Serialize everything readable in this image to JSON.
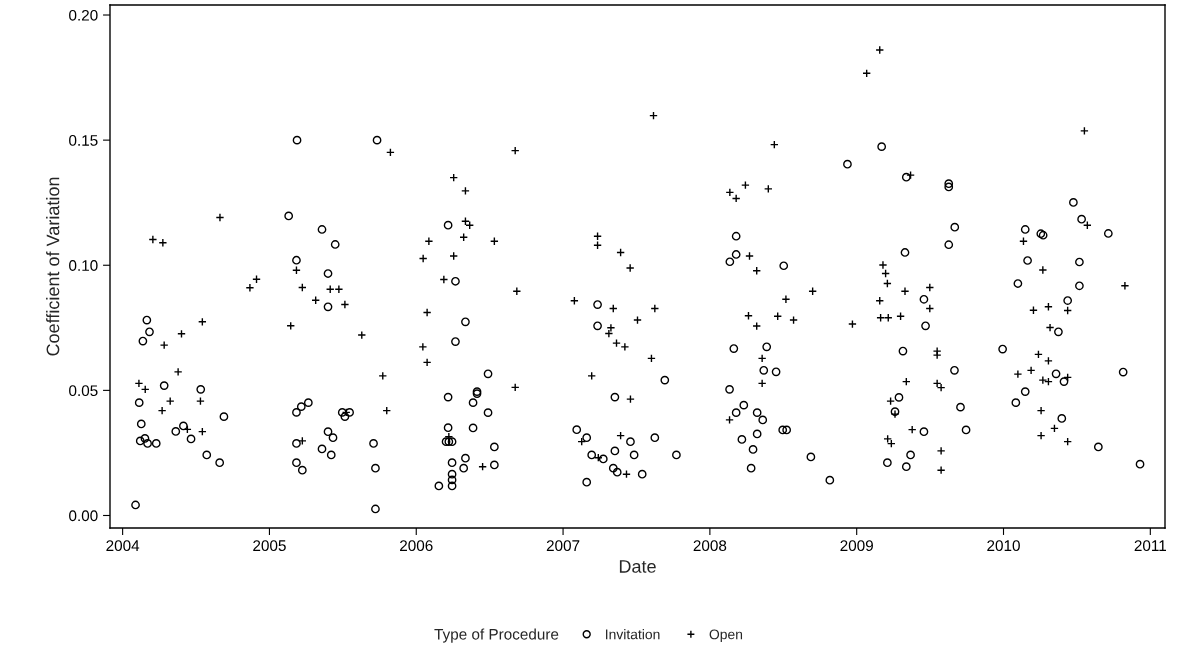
{
  "chart_data": {
    "type": "scatter",
    "xlabel": "Date",
    "ylabel": "Coefficient of Variation",
    "legend_title": "Type of Procedure",
    "legend": "bottom",
    "grid": false,
    "xlim": [
      2003.914,
      2011.1
    ],
    "xticks": [
      2004,
      2005,
      2006,
      2007,
      2008,
      2009,
      2010,
      2011
    ],
    "ylim": [
      -0.005,
      0.204
    ],
    "yticks": [
      {
        "value": 0,
        "label": "0.00"
      },
      {
        "value": 0.05,
        "label": "0.05"
      },
      {
        "value": 0.1,
        "label": "0.10"
      },
      {
        "value": 0.15,
        "label": "0.15"
      },
      {
        "value": 0.2,
        "label": "0.20"
      }
    ],
    "series": [
      {
        "name": "Invitation",
        "color": "#000000",
        "marker": "circle",
        "x": [
          2005.188,
          2005.733,
          2005.131,
          2005.358,
          2005.448,
          2005.184,
          2005.399,
          2005.399,
          2004.165,
          2004.183,
          2004.138,
          2004.283,
          2004.532,
          2004.113,
          2004.69,
          2004.127,
          2004.362,
          2004.414,
          2004.466,
          2004.12,
          2004.152,
          2004.17,
          2004.229,
          2004.573,
          2004.661,
          2004.088,
          2005.184,
          2005.217,
          2005.265,
          2005.184,
          2005.184,
          2005.224,
          2005.358,
          2005.399,
          2005.433,
          2005.421,
          2005.496,
          2005.546,
          2005.514,
          2005.709,
          2005.722,
          2005.722,
          2006.217,
          2006.267,
          2006.335,
          2006.267,
          2006.489,
          2006.217,
          2006.414,
          2006.414,
          2006.387,
          2006.489,
          2006.217,
          2006.387,
          2006.203,
          2006.222,
          2006.244,
          2006.532,
          2006.335,
          2006.323,
          2006.244,
          2006.532,
          2006.244,
          2006.244,
          2006.244,
          2006.154,
          2007.235,
          2007.235,
          2007.693,
          2007.353,
          2007.093,
          2007.161,
          2007.459,
          2007.625,
          2007.195,
          2007.274,
          2007.353,
          2007.484,
          2007.772,
          2007.342,
          2007.369,
          2007.539,
          2007.161,
          2008.179,
          2008.179,
          2008.136,
          2008.163,
          2008.387,
          2008.367,
          2008.134,
          2008.231,
          2008.179,
          2008.322,
          2008.36,
          2008.322,
          2008.218,
          2008.294,
          2008.281,
          2008.503,
          2008.451,
          2008.496,
          2008.523,
          2008.688,
          2008.817,
          2009.17,
          2008.937,
          2009.338,
          2009.627,
          2009.627,
          2009.668,
          2009.627,
          2009.329,
          2009.458,
          2009.469,
          2009.315,
          2009.666,
          2009.288,
          2009.261,
          2009.707,
          2009.458,
          2009.745,
          2009.367,
          2009.209,
          2009.338,
          2010.476,
          2010.532,
          2010.714,
          2010.148,
          2010.254,
          2010.27,
          2010.164,
          2010.517,
          2010.098,
          2010.517,
          2010.437,
          2010.374,
          2009.994,
          2010.358,
          2010.412,
          2010.815,
          2010.148,
          2010.084,
          2010.397,
          2010.646,
          2010.93
        ],
        "values": [
          0.15,
          0.15,
          0.1197,
          0.1143,
          0.1083,
          0.102,
          0.0967,
          0.0834,
          0.0781,
          0.0734,
          0.0697,
          0.0519,
          0.0504,
          0.0451,
          0.0395,
          0.0366,
          0.0336,
          0.0358,
          0.0306,
          0.0298,
          0.0308,
          0.0288,
          0.0288,
          0.0242,
          0.0211,
          0.0042,
          0.0412,
          0.0435,
          0.0451,
          0.0288,
          0.0211,
          0.0181,
          0.0266,
          0.0335,
          0.0311,
          0.0242,
          0.0412,
          0.0412,
          0.0395,
          0.0288,
          0.0189,
          0.0026,
          0.116,
          0.0936,
          0.0774,
          0.0695,
          0.0566,
          0.0473,
          0.0495,
          0.0487,
          0.0451,
          0.0411,
          0.0351,
          0.035,
          0.0295,
          0.0295,
          0.0295,
          0.0274,
          0.0229,
          0.0189,
          0.0211,
          0.0202,
          0.0165,
          0.0142,
          0.0118,
          0.0118,
          0.0843,
          0.0758,
          0.0541,
          0.0473,
          0.0343,
          0.0311,
          0.0295,
          0.0311,
          0.0242,
          0.0226,
          0.0258,
          0.0242,
          0.0242,
          0.0189,
          0.0173,
          0.0165,
          0.0133,
          0.1116,
          0.1043,
          0.1014,
          0.0667,
          0.0674,
          0.058,
          0.0504,
          0.0441,
          0.0411,
          0.0411,
          0.0382,
          0.0326,
          0.0304,
          0.0264,
          0.0189,
          0.0998,
          0.0574,
          0.0342,
          0.0342,
          0.0234,
          0.0141,
          0.1474,
          0.1404,
          0.1352,
          0.1326,
          0.1313,
          0.1152,
          0.1082,
          0.1051,
          0.0864,
          0.0758,
          0.0657,
          0.058,
          0.0472,
          0.0415,
          0.0433,
          0.0335,
          0.0342,
          0.0242,
          0.0211,
          0.0195,
          0.1251,
          0.1184,
          0.1127,
          0.1143,
          0.1126,
          0.112,
          0.1019,
          0.1013,
          0.0927,
          0.0918,
          0.0859,
          0.0734,
          0.0665,
          0.0566,
          0.0535,
          0.0573,
          0.0495,
          0.0451,
          0.0388,
          0.0274,
          0.0205
        ]
      },
      {
        "name": "Open",
        "color": "#000000",
        "marker": "cross",
        "x": [
          2005.824,
          2004.663,
          2004.206,
          2004.274,
          2005.184,
          2004.867,
          2004.912,
          2005.224,
          2005.315,
          2005.414,
          2005.473,
          2005.514,
          2005.145,
          2005.629,
          2005.772,
          2005.799,
          2004.283,
          2004.401,
          2004.543,
          2004.378,
          2004.111,
          2004.154,
          2004.324,
          2004.269,
          2004.53,
          2004.441,
          2004.543,
          2005.224,
          2005.523,
          2006.674,
          2006.255,
          2006.335,
          2006.335,
          2006.364,
          2006.086,
          2006.323,
          2006.532,
          2006.047,
          2006.255,
          2006.188,
          2006.685,
          2006.074,
          2006.045,
          2006.074,
          2006.674,
          2006.222,
          2006.452,
          2007.616,
          2007.235,
          2007.235,
          2007.392,
          2007.457,
          2007.077,
          2007.342,
          2007.625,
          2007.507,
          2007.326,
          2007.312,
          2007.364,
          2007.421,
          2007.602,
          2007.195,
          2007.459,
          2007.127,
          2007.392,
          2007.24,
          2007.432,
          2008.136,
          2008.179,
          2008.242,
          2008.27,
          2008.319,
          2008.398,
          2008.439,
          2008.263,
          2008.319,
          2008.356,
          2008.356,
          2008.134,
          2008.7,
          2008.518,
          2008.462,
          2008.57,
          2008.971,
          2009.157,
          2009.068,
          2009.367,
          2009.179,
          2009.197,
          2009.209,
          2009.329,
          2009.498,
          2009.157,
          2009.498,
          2009.163,
          2009.215,
          2009.299,
          2009.548,
          2009.548,
          2009.338,
          2009.548,
          2009.575,
          2009.231,
          2009.261,
          2009.378,
          2009.211,
          2009.236,
          2009.575,
          2009.575,
          2010.551,
          2010.571,
          2010.136,
          2010.268,
          2010.827,
          2010.437,
          2010.204,
          2010.306,
          2010.317,
          2010.238,
          2010.306,
          2010.098,
          2010.188,
          2010.268,
          2010.306,
          2010.437,
          2010.256,
          2010.347,
          2010.256,
          2010.437
        ],
        "values": [
          0.1451,
          0.1191,
          0.1103,
          0.109,
          0.098,
          0.091,
          0.0944,
          0.0911,
          0.086,
          0.0904,
          0.0904,
          0.0843,
          0.0758,
          0.0721,
          0.0558,
          0.0419,
          0.0681,
          0.0726,
          0.0774,
          0.0574,
          0.0528,
          0.0504,
          0.0457,
          0.0419,
          0.0457,
          0.0344,
          0.0335,
          0.0298,
          0.0412,
          0.1458,
          0.135,
          0.1297,
          0.1176,
          0.116,
          0.1096,
          0.1112,
          0.1096,
          0.1027,
          0.1037,
          0.0943,
          0.0896,
          0.0811,
          0.0674,
          0.0612,
          0.0512,
          0.0315,
          0.0195,
          0.1598,
          0.1116,
          0.108,
          0.1051,
          0.0989,
          0.0858,
          0.0827,
          0.0827,
          0.0781,
          0.075,
          0.0727,
          0.0689,
          0.0674,
          0.0628,
          0.0558,
          0.0465,
          0.0295,
          0.0319,
          0.0231,
          0.0165,
          0.1291,
          0.1267,
          0.132,
          0.1037,
          0.0978,
          0.1305,
          0.1482,
          0.0798,
          0.0757,
          0.0628,
          0.0528,
          0.0382,
          0.0896,
          0.0864,
          0.0796,
          0.0781,
          0.0765,
          0.186,
          0.1767,
          0.136,
          0.1001,
          0.0967,
          0.0927,
          0.0896,
          0.0911,
          0.0858,
          0.0827,
          0.079,
          0.079,
          0.0796,
          0.0657,
          0.0641,
          0.0535,
          0.0528,
          0.0511,
          0.0457,
          0.0405,
          0.0343,
          0.0306,
          0.0287,
          0.0258,
          0.0181,
          0.1537,
          0.116,
          0.1096,
          0.0981,
          0.0918,
          0.0819,
          0.082,
          0.0834,
          0.0751,
          0.0644,
          0.0618,
          0.0565,
          0.058,
          0.0541,
          0.0535,
          0.0552,
          0.0419,
          0.0348,
          0.0319,
          0.0295
        ]
      }
    ]
  }
}
